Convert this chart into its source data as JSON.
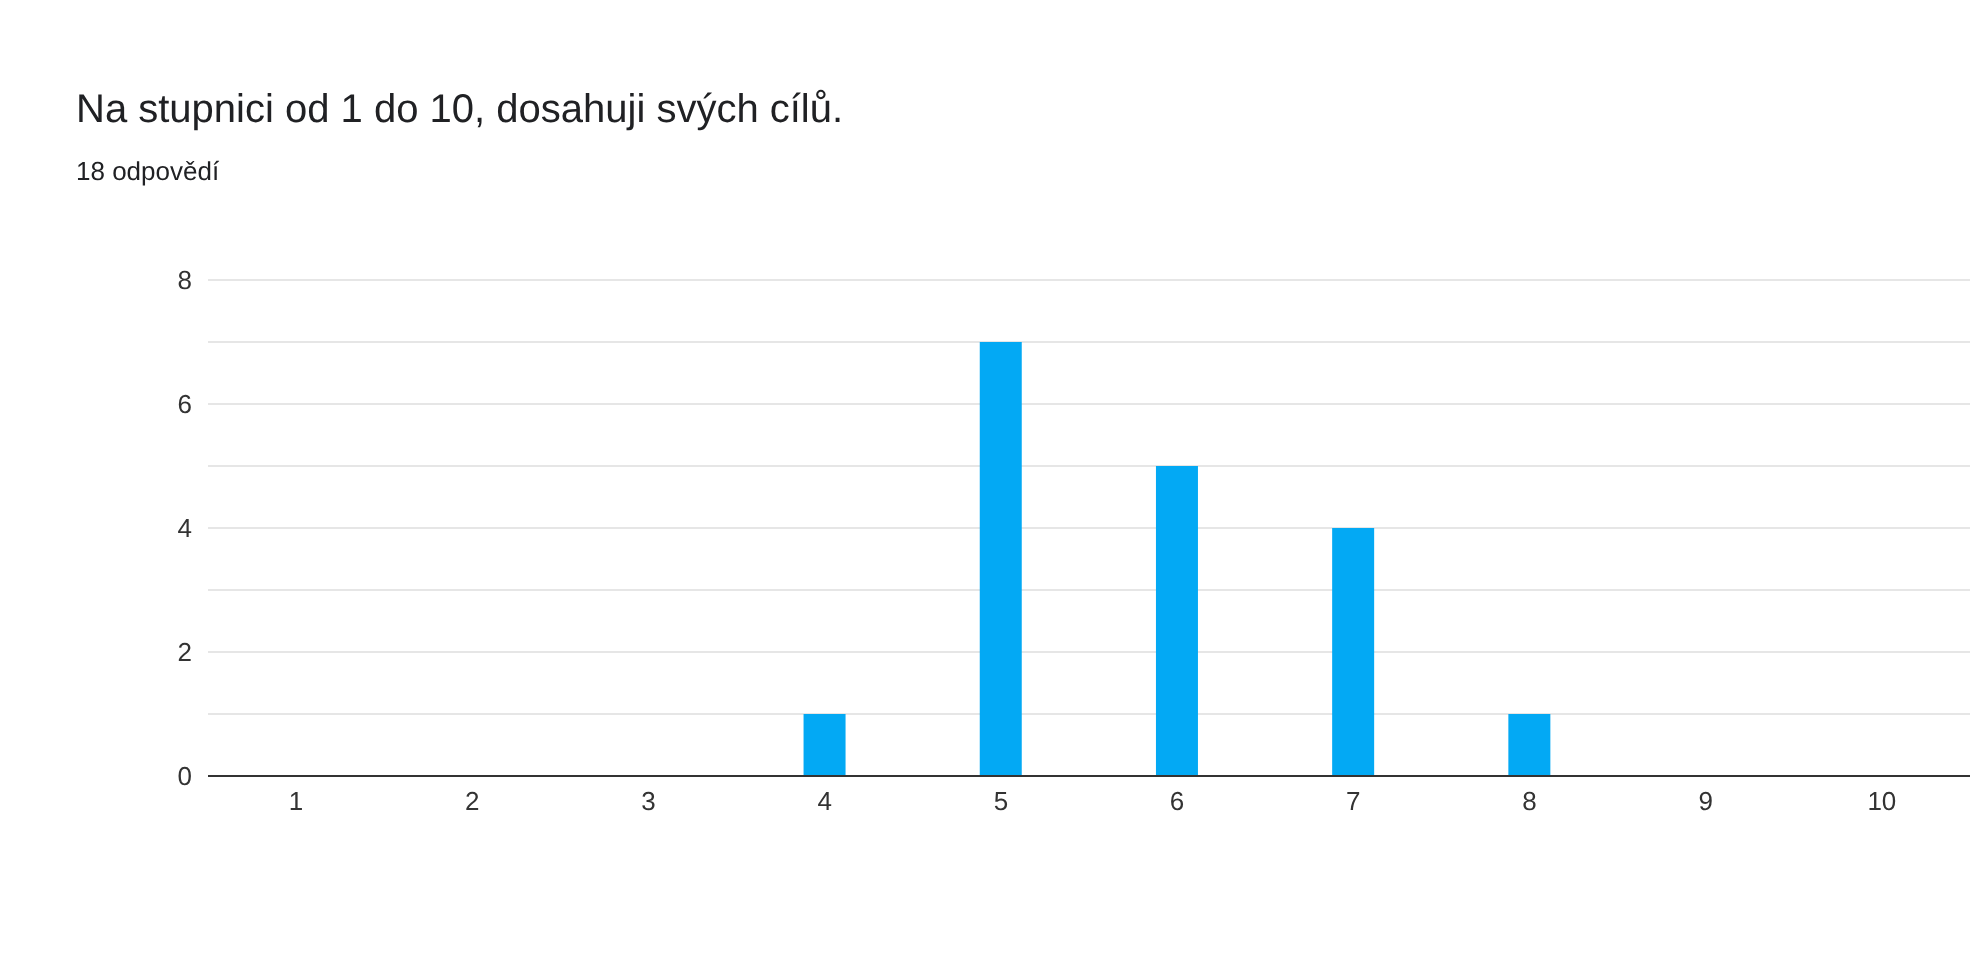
{
  "chart_data": {
    "type": "bar",
    "title": "Na stupnici od 1 do 10, dosahuji svých cílů.",
    "subtitle": "18 odpovědí",
    "categories": [
      "1",
      "2",
      "3",
      "4",
      "5",
      "6",
      "7",
      "8",
      "9",
      "10"
    ],
    "values": [
      0,
      0,
      0,
      1,
      7,
      5,
      4,
      1,
      0,
      0
    ],
    "color": "#03a9f4",
    "ylim": [
      0,
      8
    ],
    "yticks": [
      0,
      {
        "value": 1,
        "label": null
      },
      2,
      {
        "value": 3,
        "label": null
      },
      4,
      {
        "value": 5,
        "label": null
      },
      6,
      {
        "value": 7,
        "label": null
      },
      8
    ],
    "grid": "y"
  }
}
